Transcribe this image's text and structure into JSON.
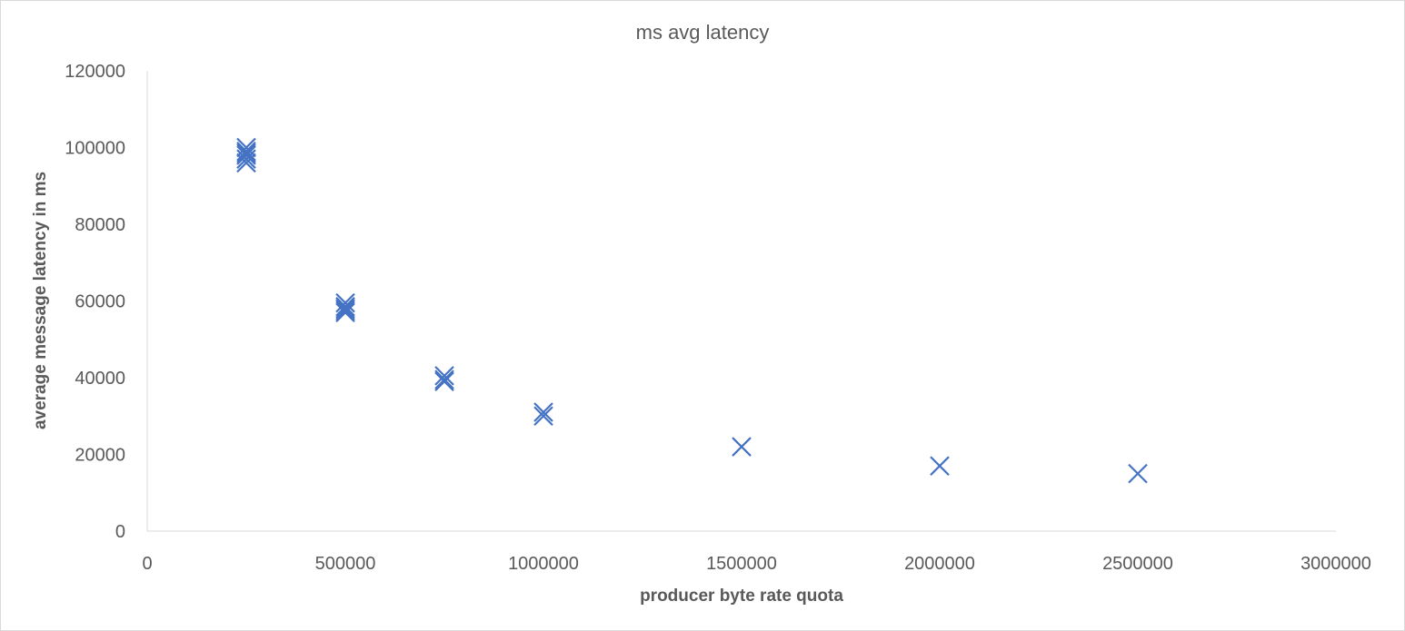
{
  "chart_data": {
    "type": "scatter",
    "title": "ms avg latency",
    "xlabel": "producer byte rate quota",
    "ylabel": "average message latency in ms",
    "xlim": [
      0,
      3000000
    ],
    "ylim": [
      0,
      120000
    ],
    "x_ticks": [
      0,
      500000,
      1000000,
      1500000,
      2000000,
      2500000,
      3000000
    ],
    "x_tick_labels": [
      "0",
      "500000",
      "1000000",
      "1500000",
      "2000000",
      "2500000",
      "3000000"
    ],
    "y_ticks": [
      0,
      20000,
      40000,
      60000,
      80000,
      100000,
      120000
    ],
    "y_tick_labels": [
      "0",
      "20000",
      "40000",
      "60000",
      "80000",
      "100000",
      "120000"
    ],
    "grid": false,
    "legend": "none",
    "marker": "x",
    "color": "#4472C4",
    "series": [
      {
        "x": [
          250000,
          250000,
          250000,
          250000,
          250000,
          250000,
          500000,
          500000,
          500000,
          500000,
          500000,
          750000,
          750000,
          750000,
          1000000,
          1000000,
          1500000,
          2000000,
          2500000
        ],
        "y": [
          100000,
          99000,
          98500,
          98000,
          97000,
          96000,
          59500,
          58500,
          58000,
          57500,
          57000,
          40500,
          39500,
          39000,
          31000,
          30000,
          22000,
          17000,
          15000
        ]
      }
    ]
  }
}
